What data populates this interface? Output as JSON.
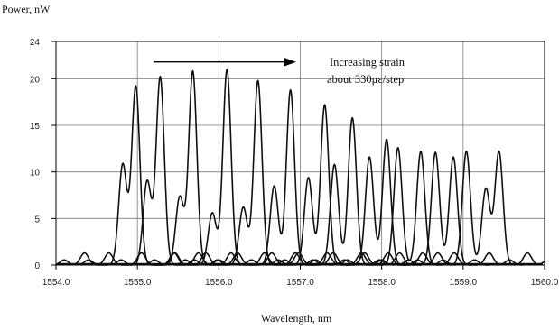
{
  "chart_data": {
    "type": "line",
    "ylabel": "Power, nW",
    "xlabel": "Wavelength, nm",
    "xlim": [
      1554.0,
      1560.0
    ],
    "ylim": [
      0,
      24
    ],
    "xticks": [
      1554.0,
      1555.0,
      1556.0,
      1557.0,
      1558.0,
      1559.0,
      1560.0
    ],
    "xtick_labels": [
      "1554.0",
      "1555.0",
      "1556.0",
      "1557.0",
      "1558.0",
      "1559.0",
      "1560.0"
    ],
    "yticks": [
      0,
      5,
      10,
      15,
      20,
      24
    ],
    "ytick_labels": [
      "0",
      "5",
      "10",
      "15",
      "20",
      "24"
    ],
    "grid": true,
    "annotation": {
      "lines": [
        "Increasing strain",
        "about 330με/step"
      ],
      "arrow_from_x": 1555.2,
      "arrow_to_x": 1556.95,
      "arrow_y": 21.8
    },
    "series": [
      {
        "peaks": [
          [
            1554.82,
            10.8
          ],
          [
            1554.98,
            19.2
          ]
        ]
      },
      {
        "peaks": [
          [
            1555.12,
            9.0
          ],
          [
            1555.28,
            20.2
          ]
        ]
      },
      {
        "peaks": [
          [
            1555.52,
            7.3
          ],
          [
            1555.68,
            20.8
          ]
        ]
      },
      {
        "peaks": [
          [
            1555.92,
            5.6
          ],
          [
            1556.1,
            21.0
          ]
        ]
      },
      {
        "peaks": [
          [
            1556.3,
            6.2
          ],
          [
            1556.48,
            19.8
          ]
        ]
      },
      {
        "peaks": [
          [
            1556.68,
            8.5
          ],
          [
            1556.88,
            18.8
          ]
        ]
      },
      {
        "peaks": [
          [
            1557.1,
            9.4
          ],
          [
            1557.3,
            17.2
          ]
        ]
      },
      {
        "peaks": [
          [
            1557.42,
            10.8
          ],
          [
            1557.64,
            15.8
          ]
        ]
      },
      {
        "peaks": [
          [
            1557.85,
            11.6
          ],
          [
            1558.06,
            13.5
          ]
        ]
      },
      {
        "peaks": [
          [
            1558.2,
            12.6
          ],
          [
            1558.48,
            12.2
          ]
        ]
      },
      {
        "peaks": [
          [
            1558.66,
            12.1
          ],
          [
            1558.88,
            11.6
          ]
        ]
      },
      {
        "peaks": [
          [
            1559.04,
            12.2
          ],
          [
            1559.28,
            8.2
          ],
          [
            1559.44,
            12.2
          ]
        ]
      }
    ]
  }
}
